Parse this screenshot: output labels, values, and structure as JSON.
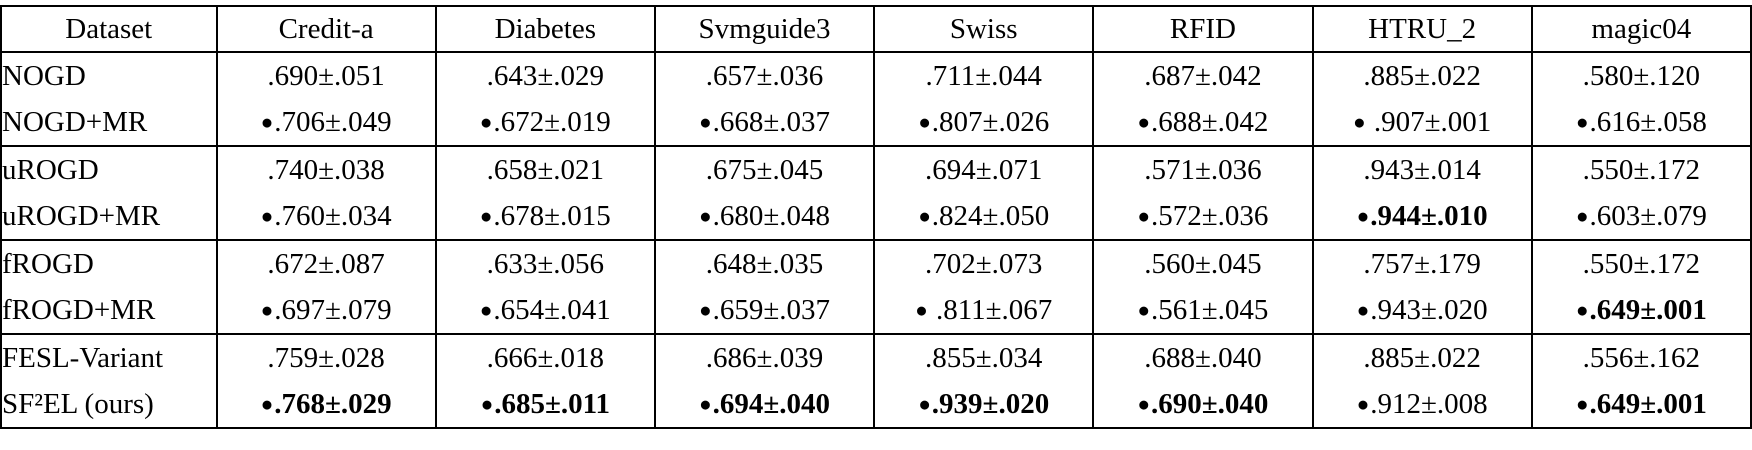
{
  "table": {
    "bullet_char": "●",
    "columns": [
      "Dataset",
      "Credit-a",
      "Diabetes",
      "Svmguide3",
      "Swiss",
      "RFID",
      "HTRU_2",
      "magic04"
    ],
    "rows": [
      {
        "label": "NOGD",
        "group_start": true,
        "cells": [
          {
            "bullet": false,
            "bold": false,
            "text": ".690±.051"
          },
          {
            "bullet": false,
            "bold": false,
            "text": ".643±.029"
          },
          {
            "bullet": false,
            "bold": false,
            "text": ".657±.036"
          },
          {
            "bullet": false,
            "bold": false,
            "text": ".711±.044"
          },
          {
            "bullet": false,
            "bold": false,
            "text": ".687±.042"
          },
          {
            "bullet": false,
            "bold": false,
            "text": ".885±.022"
          },
          {
            "bullet": false,
            "bold": false,
            "text": ".580±.120"
          }
        ]
      },
      {
        "label": "NOGD+MR",
        "group_start": false,
        "cells": [
          {
            "bullet": true,
            "bold": false,
            "text": ".706±.049"
          },
          {
            "bullet": true,
            "bold": false,
            "text": ".672±.019"
          },
          {
            "bullet": true,
            "bold": false,
            "text": ".668±.037"
          },
          {
            "bullet": true,
            "bold": false,
            "text": ".807±.026"
          },
          {
            "bullet": true,
            "bold": false,
            "text": ".688±.042"
          },
          {
            "bullet": true,
            "bold": false,
            "text": " .907±.001"
          },
          {
            "bullet": true,
            "bold": false,
            "text": ".616±.058"
          }
        ]
      },
      {
        "label": "uROGD",
        "group_start": true,
        "cells": [
          {
            "bullet": false,
            "bold": false,
            "text": ".740±.038"
          },
          {
            "bullet": false,
            "bold": false,
            "text": ".658±.021"
          },
          {
            "bullet": false,
            "bold": false,
            "text": ".675±.045"
          },
          {
            "bullet": false,
            "bold": false,
            "text": ".694±.071"
          },
          {
            "bullet": false,
            "bold": false,
            "text": ".571±.036"
          },
          {
            "bullet": false,
            "bold": false,
            "text": ".943±.014"
          },
          {
            "bullet": false,
            "bold": false,
            "text": ".550±.172"
          }
        ]
      },
      {
        "label": "uROGD+MR",
        "group_start": false,
        "cells": [
          {
            "bullet": true,
            "bold": false,
            "text": ".760±.034"
          },
          {
            "bullet": true,
            "bold": false,
            "text": ".678±.015"
          },
          {
            "bullet": true,
            "bold": false,
            "text": ".680±.048"
          },
          {
            "bullet": true,
            "bold": false,
            "text": ".824±.050"
          },
          {
            "bullet": true,
            "bold": false,
            "text": ".572±.036"
          },
          {
            "bullet": true,
            "bold": true,
            "text": ".944±.010"
          },
          {
            "bullet": true,
            "bold": false,
            "text": ".603±.079"
          }
        ]
      },
      {
        "label": "fROGD",
        "group_start": true,
        "cells": [
          {
            "bullet": false,
            "bold": false,
            "text": ".672±.087"
          },
          {
            "bullet": false,
            "bold": false,
            "text": ".633±.056"
          },
          {
            "bullet": false,
            "bold": false,
            "text": ".648±.035"
          },
          {
            "bullet": false,
            "bold": false,
            "text": ".702±.073"
          },
          {
            "bullet": false,
            "bold": false,
            "text": ".560±.045"
          },
          {
            "bullet": false,
            "bold": false,
            "text": ".757±.179"
          },
          {
            "bullet": false,
            "bold": false,
            "text": ".550±.172"
          }
        ]
      },
      {
        "label": "fROGD+MR",
        "group_start": false,
        "cells": [
          {
            "bullet": true,
            "bold": false,
            "text": ".697±.079"
          },
          {
            "bullet": true,
            "bold": false,
            "text": ".654±.041"
          },
          {
            "bullet": true,
            "bold": false,
            "text": ".659±.037"
          },
          {
            "bullet": true,
            "bold": false,
            "text": " .811±.067"
          },
          {
            "bullet": true,
            "bold": false,
            "text": ".561±.045"
          },
          {
            "bullet": true,
            "bold": false,
            "text": ".943±.020"
          },
          {
            "bullet": true,
            "bold": true,
            "text": ".649±.001"
          }
        ]
      },
      {
        "label": "FESL-Variant",
        "group_start": true,
        "cells": [
          {
            "bullet": false,
            "bold": false,
            "text": ".759±.028"
          },
          {
            "bullet": false,
            "bold": false,
            "text": ".666±.018"
          },
          {
            "bullet": false,
            "bold": false,
            "text": ".686±.039"
          },
          {
            "bullet": false,
            "bold": false,
            "text": ".855±.034"
          },
          {
            "bullet": false,
            "bold": false,
            "text": ".688±.040"
          },
          {
            "bullet": false,
            "bold": false,
            "text": ".885±.022"
          },
          {
            "bullet": false,
            "bold": false,
            "text": ".556±.162"
          }
        ]
      },
      {
        "label": "SF²EL (ours)",
        "group_start": false,
        "cells": [
          {
            "bullet": true,
            "bold": true,
            "text": ".768±.029"
          },
          {
            "bullet": true,
            "bold": true,
            "text": ".685±.011"
          },
          {
            "bullet": true,
            "bold": true,
            "text": ".694±.040"
          },
          {
            "bullet": true,
            "bold": true,
            "text": ".939±.020"
          },
          {
            "bullet": true,
            "bold": true,
            "text": ".690±.040"
          },
          {
            "bullet": true,
            "bold": false,
            "text": ".912±.008"
          },
          {
            "bullet": true,
            "bold": true,
            "text": ".649±.001"
          }
        ]
      }
    ]
  },
  "colors": {
    "border": "#000000",
    "text": "#000000",
    "background": "#ffffff"
  }
}
